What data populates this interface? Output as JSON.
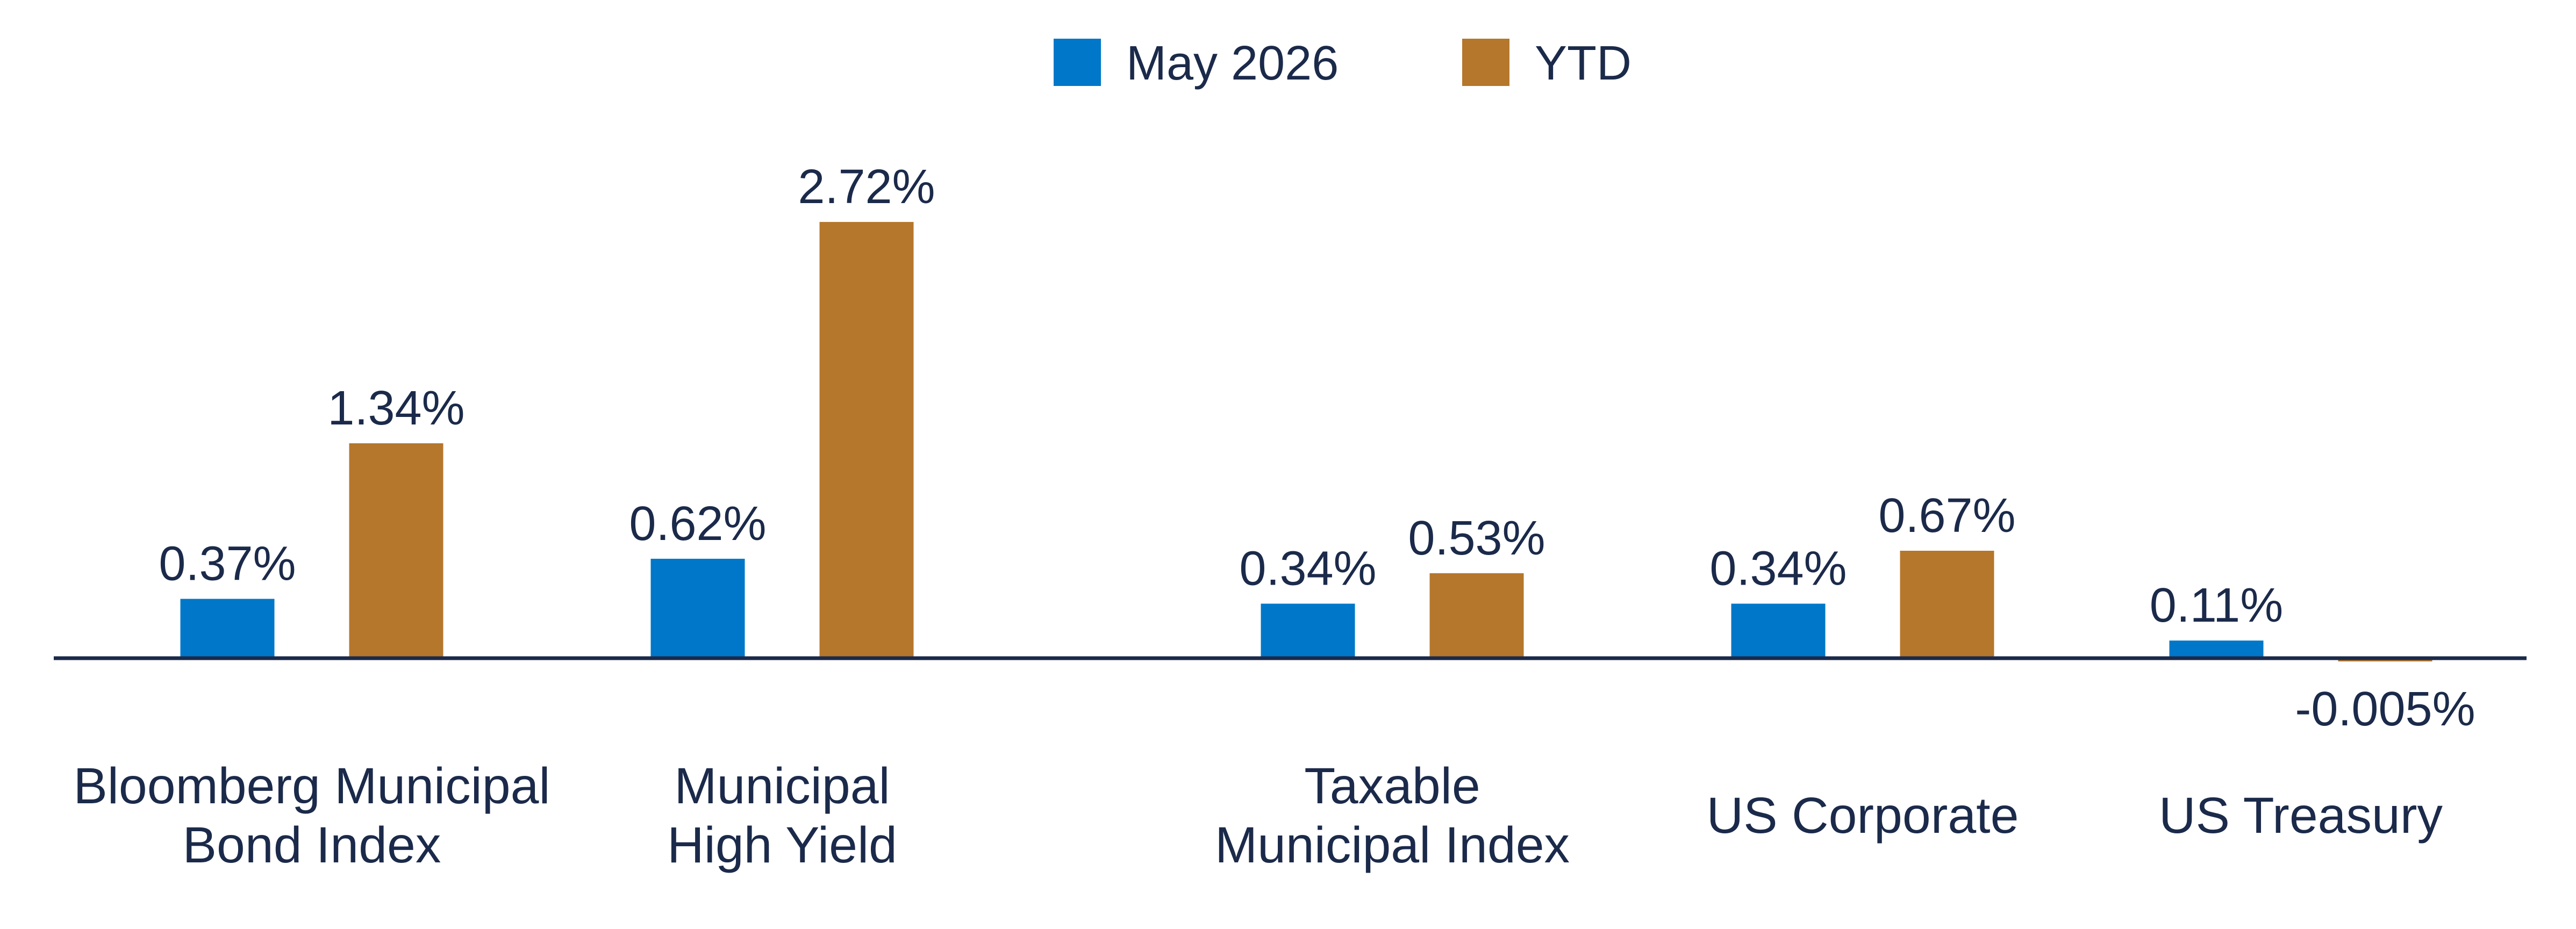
{
  "colors": {
    "may": "#0077C8",
    "ytd": "#B5772C",
    "axis": "#1b2a4a",
    "text": "#1b2a4a"
  },
  "chart_data": {
    "type": "bar",
    "categories": [
      [
        "Bloomberg Municipal",
        "Bond Index"
      ],
      [
        "Municipal",
        "High Yield"
      ],
      [
        "Taxable",
        "Municipal Index"
      ],
      [
        "US Corporate"
      ],
      [
        "US Treasury"
      ]
    ],
    "series": [
      {
        "name": "May 2026",
        "values": [
          0.37,
          0.62,
          0.34,
          0.34,
          0.11
        ],
        "labels": [
          "0.37%",
          "0.62%",
          "0.34%",
          "0.34%",
          "0.11%"
        ]
      },
      {
        "name": "YTD",
        "values": [
          1.34,
          2.72,
          0.53,
          0.67,
          -0.005
        ],
        "labels": [
          "1.34%",
          "2.72%",
          "0.53%",
          "0.67%",
          "-0.005%"
        ]
      }
    ],
    "unit": "%",
    "legend_position": "top-center",
    "grid": false
  }
}
